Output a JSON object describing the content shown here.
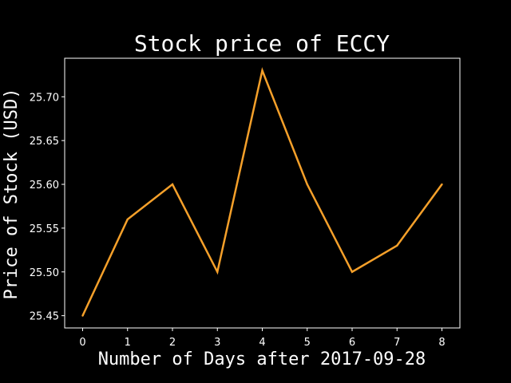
{
  "chart_data": {
    "type": "line",
    "title": "Stock price of ECCY",
    "xlabel": "Number of Days after 2017-09-28",
    "ylabel": "Price of Stock (USD)",
    "x": [
      0,
      1,
      2,
      3,
      4,
      5,
      6,
      7,
      8
    ],
    "xticks": [
      "0",
      "1",
      "2",
      "3",
      "4",
      "5",
      "6",
      "7",
      "8"
    ],
    "yticks": [
      "25.45",
      "25.50",
      "25.55",
      "25.60",
      "25.65",
      "25.70"
    ],
    "ytick_values": [
      25.45,
      25.5,
      25.55,
      25.6,
      25.65,
      25.7
    ],
    "series": [
      {
        "values": [
          25.45,
          25.56,
          25.6,
          25.5,
          25.73,
          25.6,
          25.5,
          25.53,
          25.6
        ],
        "color": "#f5a02a"
      }
    ],
    "xlim": [
      -0.4,
      8.4
    ],
    "ylim": [
      25.436,
      25.744
    ],
    "grid": false,
    "background": "#000000",
    "axes_color": "#ffffff"
  }
}
